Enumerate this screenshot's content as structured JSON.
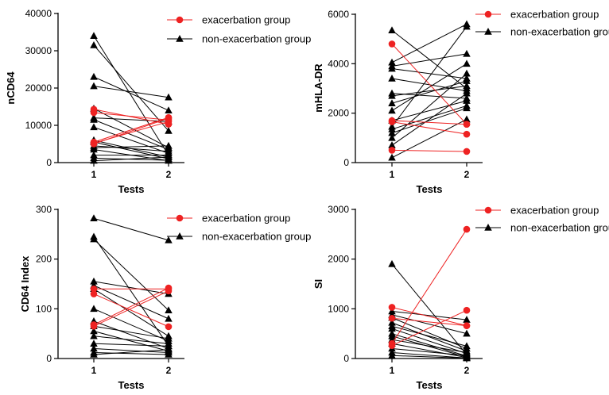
{
  "colors": {
    "exacerbation": "#ee2222",
    "non_exacerbation": "#000000"
  },
  "chart_data": [
    {
      "type": "line",
      "title": "",
      "xlabel": "Tests",
      "ylabel": "nCD64",
      "x": [
        1,
        2
      ],
      "xticks": [
        "1",
        "2"
      ],
      "ylim": [
        0,
        40000
      ],
      "yticks": [
        "0",
        "10000",
        "20000",
        "30000",
        "40000"
      ],
      "legend_position": "top-right",
      "series": [
        {
          "name": "exacerbation group",
          "marker": "circle",
          "pairs": [
            [
              14300,
              10300
            ],
            [
              13400,
              11400
            ],
            [
              5500,
              12100
            ],
            [
              5000,
              11900
            ],
            [
              5200,
              11000
            ]
          ]
        },
        {
          "name": "non-exacerbation group",
          "marker": "triangle",
          "pairs": [
            [
              34000,
              2000
            ],
            [
              31500,
              8500
            ],
            [
              23000,
              14000
            ],
            [
              20500,
              17500
            ],
            [
              14500,
              4000
            ],
            [
              12000,
              11000
            ],
            [
              11500,
              3500
            ],
            [
              9500,
              2500
            ],
            [
              6000,
              1500
            ],
            [
              5500,
              1000
            ],
            [
              4500,
              3000
            ],
            [
              4000,
              4500
            ],
            [
              3500,
              500
            ],
            [
              2000,
              2000
            ],
            [
              1200,
              600
            ],
            [
              500,
              1500
            ]
          ]
        }
      ]
    },
    {
      "type": "line",
      "title": "",
      "xlabel": "Tests",
      "ylabel": "mHLA-DR",
      "x": [
        1,
        2
      ],
      "xticks": [
        "1",
        "2"
      ],
      "ylim": [
        0,
        6000
      ],
      "yticks": [
        "0",
        "2000",
        "4000",
        "6000"
      ],
      "legend_position": "top-right",
      "series": [
        {
          "name": "exacerbation group",
          "marker": "circle",
          "pairs": [
            [
              4800,
              1550
            ],
            [
              1700,
              1550
            ],
            [
              500,
              450
            ],
            [
              1650,
              1150
            ]
          ]
        },
        {
          "name": "non-exacerbation group",
          "marker": "triangle",
          "pairs": [
            [
              5350,
              3000
            ],
            [
              4050,
              5600
            ],
            [
              3900,
              4400
            ],
            [
              3800,
              3400
            ],
            [
              3400,
              2900
            ],
            [
              2800,
              2600
            ],
            [
              2700,
              3100
            ],
            [
              2400,
              3300
            ],
            [
              2100,
              4000
            ],
            [
              1700,
              2500
            ],
            [
              1450,
              5500
            ],
            [
              1350,
              2300
            ],
            [
              1200,
              2200
            ],
            [
              1000,
              3600
            ],
            [
              700,
              2800
            ],
            [
              200,
              1750
            ]
          ]
        }
      ]
    },
    {
      "type": "line",
      "title": "",
      "xlabel": "Tests",
      "ylabel": "CD64 Index",
      "x": [
        1,
        2
      ],
      "xticks": [
        "1",
        "2"
      ],
      "ylim": [
        0,
        300
      ],
      "yticks": [
        "0",
        "100",
        "200",
        "300"
      ],
      "legend_position": "top-right",
      "series": [
        {
          "name": "exacerbation group",
          "marker": "circle",
          "pairs": [
            [
              140,
              140
            ],
            [
              130,
              64
            ],
            [
              68,
              142
            ],
            [
              65,
              136
            ]
          ]
        },
        {
          "name": "non-exacerbation group",
          "marker": "triangle",
          "pairs": [
            [
              282,
              238
            ],
            [
              245,
              25
            ],
            [
              240,
              97
            ],
            [
              155,
              130
            ],
            [
              147,
              80
            ],
            [
              140,
              45
            ],
            [
              100,
              35
            ],
            [
              75,
              20
            ],
            [
              65,
              40
            ],
            [
              55,
              15
            ],
            [
              45,
              30
            ],
            [
              30,
              25
            ],
            [
              20,
              12
            ],
            [
              12,
              8
            ],
            [
              8,
              18
            ]
          ]
        }
      ]
    },
    {
      "type": "line",
      "title": "",
      "xlabel": "Tests",
      "ylabel": "SI",
      "x": [
        1,
        2
      ],
      "xticks": [
        "1",
        "2"
      ],
      "ylim": [
        0,
        3000
      ],
      "yticks": [
        "0",
        "1000",
        "2000",
        "3000"
      ],
      "legend_position": "top-right",
      "series": [
        {
          "name": "exacerbation group",
          "marker": "circle",
          "pairs": [
            [
              1030,
              660
            ],
            [
              810,
              660
            ],
            [
              300,
              2600
            ],
            [
              260,
              970
            ]
          ]
        },
        {
          "name": "non-exacerbation group",
          "marker": "triangle",
          "pairs": [
            [
              1900,
              80
            ],
            [
              950,
              780
            ],
            [
              880,
              500
            ],
            [
              820,
              200
            ],
            [
              720,
              150
            ],
            [
              650,
              250
            ],
            [
              600,
              100
            ],
            [
              500,
              50
            ],
            [
              450,
              30
            ],
            [
              380,
              120
            ],
            [
              300,
              20
            ],
            [
              200,
              60
            ],
            [
              120,
              10
            ],
            [
              60,
              5
            ]
          ]
        }
      ]
    }
  ]
}
